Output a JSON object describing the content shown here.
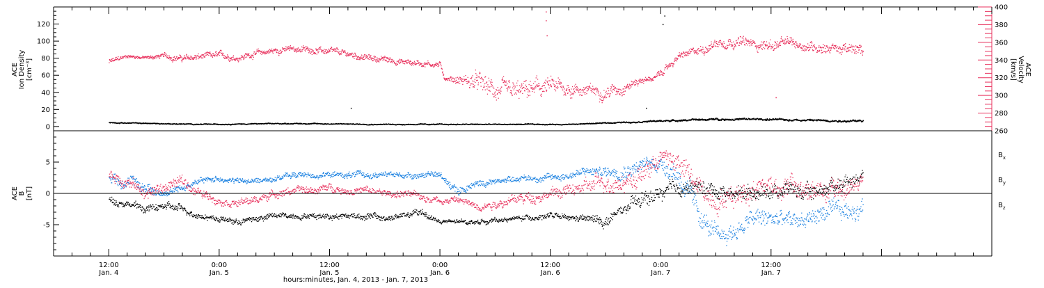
{
  "chart_data": [
    {
      "type": "scatter",
      "panel": "top",
      "ylabel_left": [
        "ACE",
        "Ion Density",
        "[cm⁻³]"
      ],
      "ylabel_right": [
        "ACE",
        "Velocity",
        "[km/s]"
      ],
      "ylim_left": [
        -5,
        140
      ],
      "ylim_right": [
        260,
        400
      ],
      "yticks_left": [
        0,
        20,
        40,
        60,
        80,
        100,
        120
      ],
      "yticks_right": [
        260,
        280,
        300,
        320,
        340,
        360,
        380,
        400
      ],
      "series": [
        {
          "name": "",
          "axis": "right",
          "color": "#e8325e",
          "x_hours": [
            0,
            2,
            4,
            6,
            8,
            10,
            12,
            14,
            16,
            18,
            20,
            22,
            24,
            26,
            28,
            30,
            32,
            34,
            36,
            36.5,
            38,
            40,
            42,
            44,
            46,
            48,
            50,
            52,
            54,
            56,
            58,
            59,
            60,
            62,
            64,
            66,
            68,
            70,
            72,
            74,
            76,
            78,
            80,
            82
          ],
          "y": [
            338,
            345,
            343,
            345,
            342,
            344,
            346,
            343,
            348,
            351,
            353,
            352,
            350,
            347,
            343,
            341,
            338,
            337,
            335,
            320,
            318,
            315,
            305,
            302,
            307,
            310,
            308,
            306,
            304,
            310,
            318,
            319,
            325,
            345,
            350,
            360,
            362,
            358,
            357,
            360,
            356,
            355,
            352,
            351
          ],
          "spread": [
            6,
            3,
            3,
            5,
            6,
            6,
            6,
            6,
            6,
            6,
            6,
            6,
            6,
            6,
            6,
            6,
            6,
            6,
            5,
            4,
            8,
            18,
            18,
            18,
            18,
            16,
            14,
            10,
            12,
            10,
            6,
            4,
            6,
            6,
            8,
            10,
            10,
            10,
            10,
            10,
            10,
            10,
            10,
            10
          ]
        },
        {
          "name": "",
          "axis": "left",
          "color": "#000000",
          "x_hours": [
            0,
            10,
            20,
            30,
            40,
            50,
            60,
            66,
            70,
            76,
            80,
            82
          ],
          "y": [
            5,
            3,
            4,
            3,
            3,
            3,
            7,
            9,
            9,
            8,
            7,
            7
          ],
          "spread": [
            1,
            1,
            1,
            1,
            1,
            1,
            1.5,
            2,
            2,
            2,
            2,
            2
          ]
        }
      ],
      "outliers": [
        {
          "x_hours": 47.5,
          "y_right": 395
        },
        {
          "x_hours": 47.5,
          "y_right": 385
        },
        {
          "x_hours": 47.6,
          "y_right": 368
        },
        {
          "x_hours": 60.4,
          "y_left": 130
        },
        {
          "x_hours": 60.2,
          "y_left": 120
        },
        {
          "x_hours": 72.5,
          "y_right": 298
        },
        {
          "x_hours": 26.3,
          "y_left": 22
        },
        {
          "x_hours": 58.4,
          "y_left": 22
        }
      ]
    },
    {
      "type": "scatter",
      "panel": "bottom",
      "ylabel_left": [
        "ACE",
        "B",
        "[nT]"
      ],
      "ylim": [
        -10,
        10
      ],
      "yticks": [
        -5,
        0,
        5
      ],
      "zero_line": true,
      "series": [
        {
          "name": "Bx",
          "label_main": "B",
          "label_sub": "x",
          "color": "#000000",
          "x_hours": [
            0,
            2,
            4,
            6,
            8,
            10,
            12,
            14,
            16,
            18,
            20,
            22,
            24,
            26,
            28,
            30,
            32,
            34,
            36,
            40,
            44,
            48,
            50,
            52,
            54,
            56,
            58,
            60,
            62,
            64,
            66,
            68,
            70,
            72,
            74,
            76,
            78,
            80,
            82
          ],
          "y": [
            -1,
            -1.5,
            -2.5,
            -2,
            -2.5,
            -3.5,
            -4,
            -4.5,
            -4,
            -3.5,
            -3.5,
            -3.5,
            -3.5,
            -3.5,
            -3.5,
            -4,
            -3.5,
            -3,
            -4.5,
            -4.5,
            -4,
            -3.5,
            -4,
            -4,
            -4.5,
            -2.5,
            -1,
            0,
            1,
            1,
            0.5,
            0,
            0.5,
            0.5,
            1,
            0,
            1,
            2,
            3
          ],
          "spread": [
            1,
            1,
            1,
            1,
            1,
            0.8,
            0.8,
            0.8,
            0.8,
            0.8,
            0.8,
            0.8,
            0.8,
            0.8,
            1,
            0.8,
            0.8,
            1,
            0.6,
            0.6,
            0.6,
            0.8,
            0.8,
            1,
            1.5,
            1.5,
            2,
            2,
            2,
            2,
            2,
            2,
            2,
            2,
            2,
            2,
            2,
            2,
            1.5
          ]
        },
        {
          "name": "By",
          "label_main": "B",
          "label_sub": "y",
          "color": "#1a80e0",
          "x_hours": [
            0,
            2,
            4,
            6,
            8,
            10,
            12,
            14,
            16,
            18,
            20,
            22,
            24,
            26,
            28,
            30,
            32,
            34,
            36,
            38,
            40,
            42,
            44,
            46,
            48,
            50,
            52,
            54,
            56,
            58,
            60,
            62,
            64,
            66,
            68,
            70,
            72,
            74,
            76,
            78,
            80,
            82
          ],
          "y": [
            3,
            2,
            1,
            0,
            1,
            2,
            2.5,
            2,
            2,
            2.5,
            3,
            3,
            3,
            3,
            3,
            3,
            3,
            3,
            3,
            0.5,
            1.5,
            2,
            2.5,
            2.5,
            2.5,
            3,
            3.5,
            3.5,
            4,
            4.5,
            5,
            3,
            -3,
            -7,
            -6,
            -4,
            -4,
            -4.5,
            -4,
            -3,
            -3,
            -2
          ],
          "spread": [
            1.5,
            1.5,
            1.5,
            1,
            1,
            0.8,
            0.8,
            0.8,
            0.8,
            0.8,
            0.8,
            0.8,
            0.8,
            0.8,
            0.8,
            0.8,
            0.8,
            0.8,
            0.8,
            1.5,
            1,
            0.8,
            0.8,
            0.8,
            1,
            1,
            1.2,
            1.5,
            2,
            2,
            2,
            3,
            3,
            2.5,
            2.5,
            2.5,
            2.5,
            2.5,
            2.5,
            2.5,
            2.5,
            2.5
          ]
        },
        {
          "name": "Bz",
          "label_main": "B",
          "label_sub": "z",
          "color": "#e8325e",
          "x_hours": [
            0,
            2,
            4,
            6,
            8,
            10,
            12,
            14,
            16,
            18,
            20,
            22,
            24,
            26,
            28,
            30,
            32,
            34,
            36,
            38,
            40,
            42,
            44,
            46,
            48,
            50,
            52,
            54,
            56,
            58,
            60,
            62,
            64,
            66,
            68,
            70,
            72,
            74,
            76,
            78,
            80,
            82
          ],
          "y": [
            3,
            2,
            0,
            1,
            2,
            0,
            -1,
            -1.5,
            -1,
            0,
            0.5,
            0.5,
            1,
            0.5,
            0.5,
            0,
            0,
            -0.5,
            -1,
            -1,
            -2,
            -1.5,
            -1,
            -0.5,
            0,
            0.5,
            1,
            2,
            2,
            3,
            6,
            5,
            1,
            -1,
            0,
            1,
            1.5,
            1,
            0.5,
            0,
            1,
            2
          ],
          "spread": [
            1.5,
            1.5,
            1.5,
            1.5,
            1.5,
            1.2,
            1,
            1,
            1,
            1,
            1,
            1,
            1,
            1,
            1,
            1,
            1,
            1,
            1,
            1,
            1,
            1.2,
            1.2,
            1.5,
            1.5,
            1.5,
            2,
            2.5,
            2.5,
            3,
            2,
            3,
            3,
            3,
            3,
            3,
            3,
            3,
            3,
            3,
            3,
            2
          ]
        }
      ]
    }
  ],
  "x_axis": {
    "xlim_hours": [
      -6,
      96
    ],
    "ticks": [
      {
        "hours": 0,
        "time": "12:00",
        "date": "Jan. 4"
      },
      {
        "hours": 12,
        "time": "0:00",
        "date": "Jan. 5"
      },
      {
        "hours": 24,
        "time": "12:00",
        "date": "Jan. 5"
      },
      {
        "hours": 36,
        "time": "0:00",
        "date": "Jan. 6"
      },
      {
        "hours": 48,
        "time": "12:00",
        "date": "Jan. 6"
      },
      {
        "hours": 60,
        "time": "0:00",
        "date": "Jan. 7"
      },
      {
        "hours": 72,
        "time": "12:00",
        "date": "Jan. 7"
      }
    ],
    "xlabel": "hours:minutes, Jan.  4, 2013 - Jan.  7, 2013"
  },
  "colors": {
    "pink": "#e8325e",
    "blue": "#1a80e0",
    "black": "#000000"
  }
}
